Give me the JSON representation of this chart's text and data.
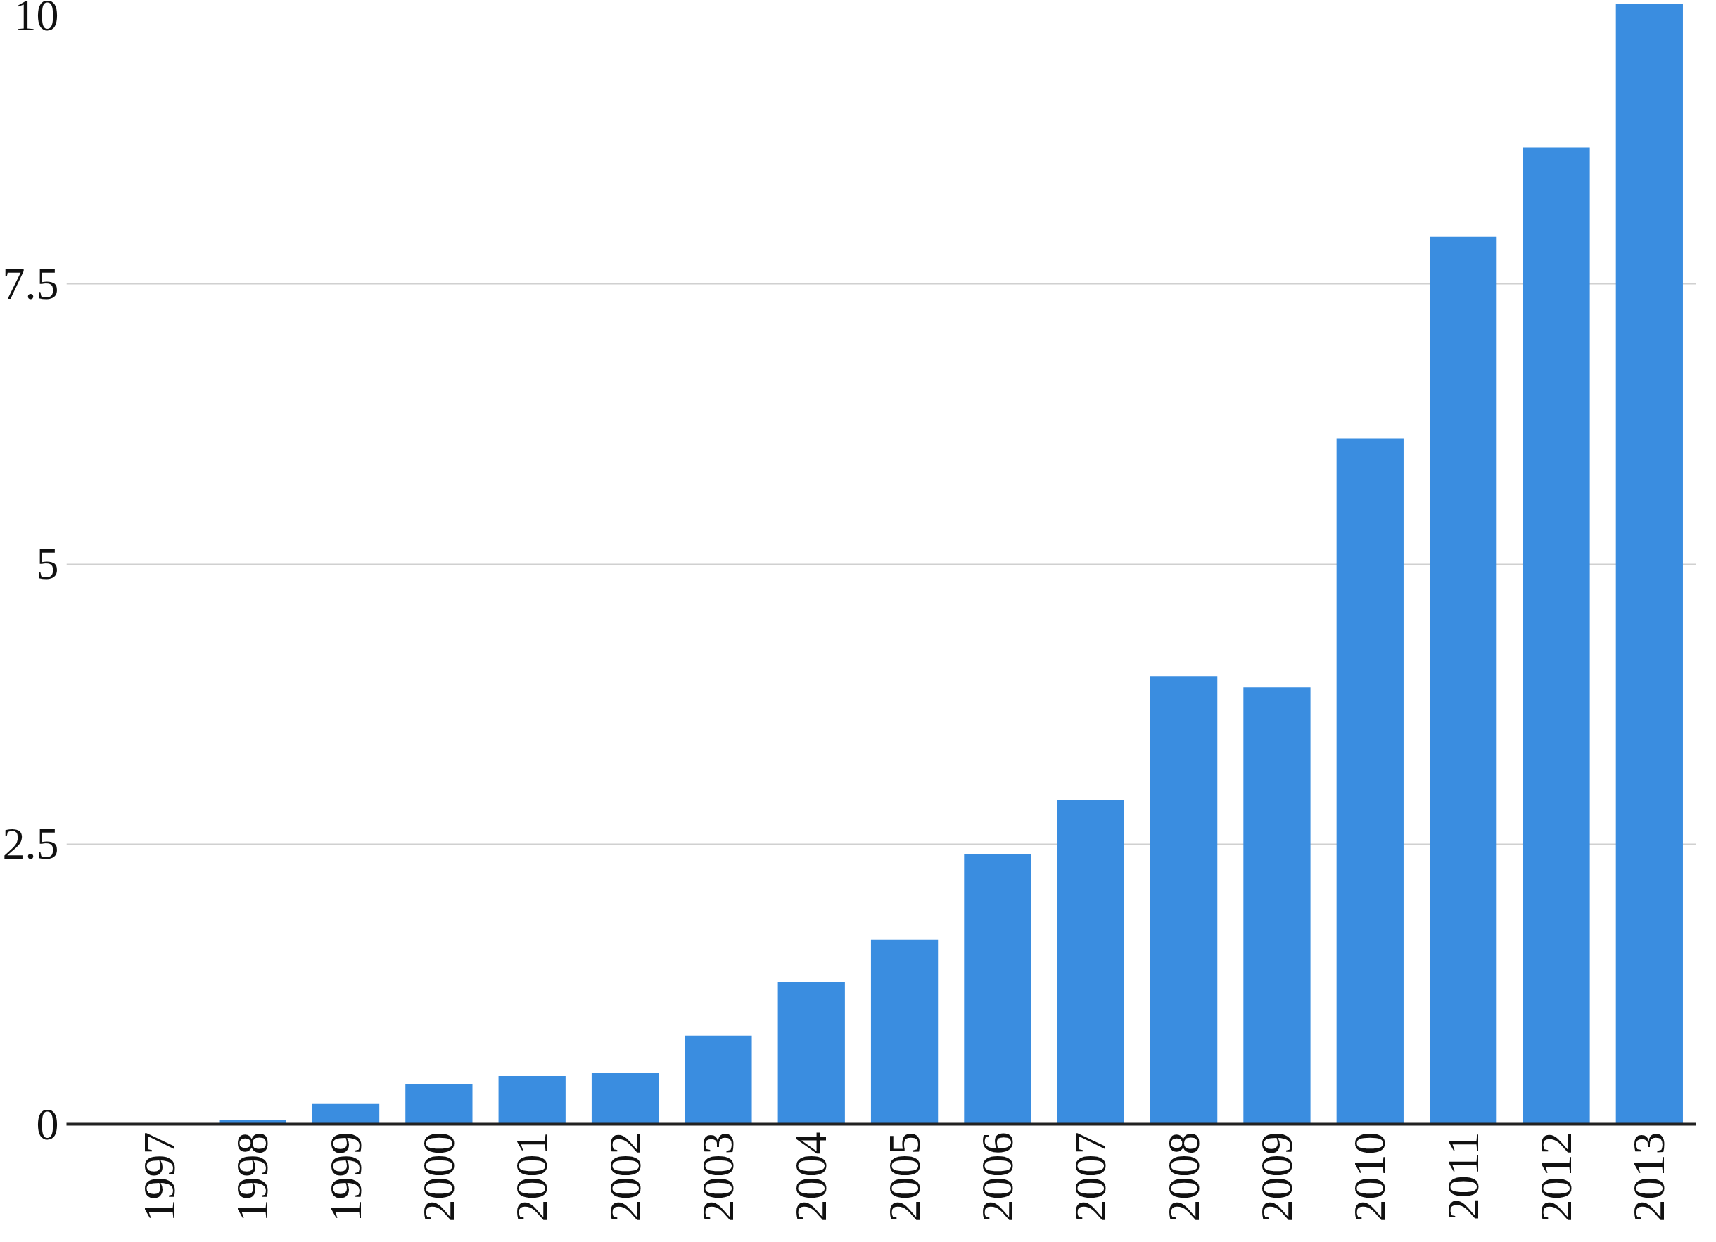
{
  "chart_data": {
    "type": "bar",
    "categories": [
      "1997",
      "1998",
      "1999",
      "2000",
      "2001",
      "2002",
      "2003",
      "2004",
      "2005",
      "2006",
      "2007",
      "2008",
      "2009",
      "2010",
      "2011",
      "2012",
      "2013"
    ],
    "values": [
      0.0,
      0.04,
      0.18,
      0.36,
      0.43,
      0.46,
      0.79,
      1.27,
      1.65,
      2.41,
      2.89,
      4.0,
      3.9,
      6.12,
      7.92,
      8.72,
      10.0
    ],
    "color": "#3a8de0",
    "ylim": [
      0,
      10
    ],
    "yticks": [
      0,
      2.5,
      5,
      7.5,
      10
    ],
    "grid": "y"
  }
}
